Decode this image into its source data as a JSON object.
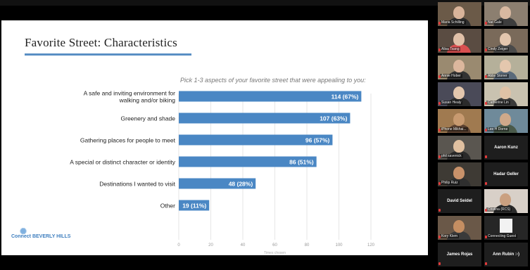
{
  "slide": {
    "title": "Favorite Street: Characteristics",
    "subtitle": "Pick 1-3 aspects of your favorite street that were appealing to you:",
    "logo_text": "Connect BEVERLY HILLS"
  },
  "chart_data": {
    "type": "bar",
    "orientation": "horizontal",
    "categories": [
      "A safe and inviting environment for walking and/or biking",
      "Greenery and shade",
      "Gathering places for people to meet",
      "A special or distinct character or identity",
      "Destinations I wanted to visit",
      "Other"
    ],
    "category_lines": [
      [
        "A safe and inviting environment for",
        "walking and/or biking"
      ],
      [
        "Greenery and shade"
      ],
      [
        "Gathering places for people to meet"
      ],
      [
        "A special or distinct character or identity"
      ],
      [
        "Destinations I wanted to visit"
      ],
      [
        "Other"
      ]
    ],
    "values": [
      114,
      107,
      96,
      86,
      48,
      19
    ],
    "data_labels": [
      "114 (67%)",
      "107 (63%)",
      "96 (57%)",
      "86 (51%)",
      "48 (28%)",
      "19 (11%)"
    ],
    "xticks": [
      "0",
      "20",
      "40",
      "60",
      "80",
      "100",
      "120"
    ],
    "xlabel": "Times chosen",
    "xlim": [
      0,
      120
    ],
    "bar_color": "#4a87c4",
    "grid": true
  },
  "participants": [
    {
      "name": "Maria Schilling",
      "kind": "video",
      "bg": "#6b5a48",
      "skin": "#d9b49a",
      "shirt": "#2d2d2d"
    },
    {
      "name": "Nat Gale",
      "kind": "video",
      "bg": "#8c7f70",
      "skin": "#d8b8a0",
      "shirt": "#3d3d3d"
    },
    {
      "name": "Alisa Tsang",
      "kind": "video",
      "bg": "#5a4c42",
      "skin": "#e0c0a8",
      "shirt": "#d94f50"
    },
    {
      "name": "Cindy Zeiger",
      "kind": "video",
      "bg": "#7a6a5a",
      "skin": "#e3c6ae",
      "shirt": "#4a4a4a"
    },
    {
      "name": "Annie Hober",
      "kind": "video",
      "bg": "#9a8a70",
      "skin": "#dcb79d",
      "shirt": "#333333"
    },
    {
      "name": "Abby Stoner",
      "kind": "video",
      "bg": "#b5b09a",
      "skin": "#e4c7ae",
      "shirt": "#5a6a7a"
    },
    {
      "name": "Susan Healy",
      "kind": "video",
      "bg": "#4a4a58",
      "skin": "#e4c7ae",
      "shirt": "#2b2b2b"
    },
    {
      "name": "Catherine Lin",
      "kind": "video",
      "bg": "#c9c2b0",
      "skin": "#e0c2a6",
      "shirt": "#3a3a3a"
    },
    {
      "name": "iPhone Mikhai...",
      "kind": "video",
      "bg": "#a07a50",
      "skin": "#c89a70",
      "shirt": "#5a4030"
    },
    {
      "name": "Lee H Dorne",
      "kind": "video",
      "bg": "#6f8a9a",
      "skin": "#cfa98a",
      "shirt": "#4a5a4a"
    },
    {
      "name": "phil savenick",
      "kind": "video",
      "bg": "#5a5650",
      "skin": "#e0c0a0",
      "shirt": "#2a2a2a"
    },
    {
      "name": "Aaron Kunz",
      "kind": "name",
      "bg": "#1e1e1e"
    },
    {
      "name": "Philip Ruiz",
      "kind": "video",
      "bg": "#3e3a34",
      "skin": "#c9926a",
      "shirt": "#2f2f2f"
    },
    {
      "name": "Hadar Geller",
      "kind": "name",
      "bg": "#1e1e1e"
    },
    {
      "name": "David Seidel",
      "kind": "name",
      "bg": "#1e1e1e"
    },
    {
      "name": "Cristina (RCS)",
      "kind": "video",
      "bg": "#d8d0c8",
      "skin": "#caa080",
      "shirt": "#2a2a2a"
    },
    {
      "name": "Kory Klem",
      "kind": "video",
      "bg": "#6a5848",
      "skin": "#c58e62",
      "shirt": "#3a3a3a"
    },
    {
      "name": "Connecting Guest",
      "kind": "avatar",
      "bg": "#262626"
    },
    {
      "name": "James Rojas",
      "kind": "name",
      "bg": "#1e1e1e"
    },
    {
      "name": "Ann Rubin :-)",
      "kind": "name",
      "bg": "#1e1e1e"
    }
  ]
}
